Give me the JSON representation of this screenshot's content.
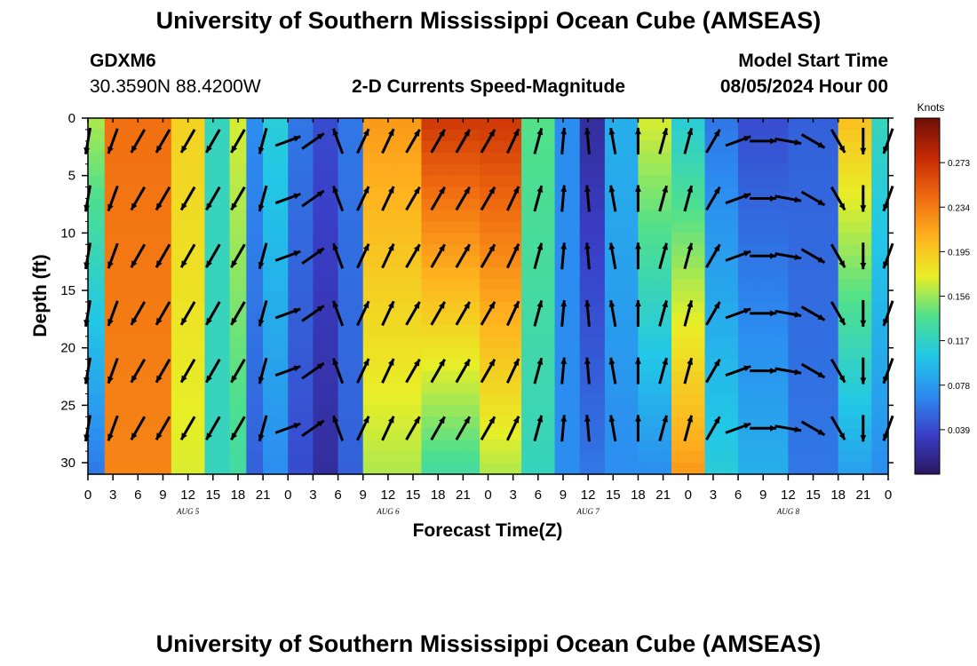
{
  "page": {
    "title": "University of Southern Mississippi Ocean Cube (AMSEAS)",
    "station": "GDXM6",
    "coords": "30.3590N  88.4200W",
    "product": "2-D Currents Speed-Magnitude",
    "model_label": "Model Start Time",
    "model_time": "08/05/2024 Hour 00",
    "footer_title": "University of Southern Mississippi Ocean Cube (AMSEAS)"
  },
  "chart_data": {
    "type": "heatmap",
    "title": "2-D Currents Speed-Magnitude",
    "xlabel": "Forecast Time(Z)",
    "ylabel": "Depth (ft)",
    "x_range_hours": [
      0,
      96
    ],
    "ylim": [
      0,
      31
    ],
    "x_ticks": [
      {
        "hour": 0,
        "label": "0"
      },
      {
        "hour": 3,
        "label": "3"
      },
      {
        "hour": 6,
        "label": "6"
      },
      {
        "hour": 9,
        "label": "9"
      },
      {
        "hour": 12,
        "label": "12"
      },
      {
        "hour": 15,
        "label": "15"
      },
      {
        "hour": 18,
        "label": "18"
      },
      {
        "hour": 21,
        "label": "21"
      },
      {
        "hour": 24,
        "label": "0"
      },
      {
        "hour": 27,
        "label": "3"
      },
      {
        "hour": 30,
        "label": "6"
      },
      {
        "hour": 33,
        "label": "9"
      },
      {
        "hour": 36,
        "label": "12"
      },
      {
        "hour": 39,
        "label": "15"
      },
      {
        "hour": 42,
        "label": "18"
      },
      {
        "hour": 45,
        "label": "21"
      },
      {
        "hour": 48,
        "label": "0"
      },
      {
        "hour": 51,
        "label": "3"
      },
      {
        "hour": 54,
        "label": "6"
      },
      {
        "hour": 57,
        "label": "9"
      },
      {
        "hour": 60,
        "label": "12"
      },
      {
        "hour": 63,
        "label": "15"
      },
      {
        "hour": 66,
        "label": "18"
      },
      {
        "hour": 69,
        "label": "21"
      },
      {
        "hour": 72,
        "label": "0"
      },
      {
        "hour": 75,
        "label": "3"
      },
      {
        "hour": 78,
        "label": "6"
      },
      {
        "hour": 81,
        "label": "9"
      },
      {
        "hour": 84,
        "label": "12"
      },
      {
        "hour": 87,
        "label": "15"
      },
      {
        "hour": 90,
        "label": "18"
      },
      {
        "hour": 93,
        "label": "21"
      },
      {
        "hour": 96,
        "label": "0"
      }
    ],
    "day_labels": [
      {
        "hour": 12,
        "label": "AUG 5"
      },
      {
        "hour": 36,
        "label": "AUG 6"
      },
      {
        "hour": 60,
        "label": "AUG 7"
      },
      {
        "hour": 84,
        "label": "AUG 8"
      }
    ],
    "y_ticks": [
      {
        "depth": 0,
        "label": "0"
      },
      {
        "depth": 5,
        "label": "5"
      },
      {
        "depth": 10,
        "label": "10"
      },
      {
        "depth": 15,
        "label": "15"
      },
      {
        "depth": 20,
        "label": "20"
      },
      {
        "depth": 25,
        "label": "25"
      },
      {
        "depth": 30,
        "label": "30"
      }
    ],
    "colorbar": {
      "label": "Knots",
      "min": 0.0,
      "max": 0.312,
      "ticks": [
        "0.273",
        "0.234",
        "0.195",
        "0.156",
        "0.117",
        "0.078",
        "0.039"
      ],
      "tick_values": [
        0.273,
        0.234,
        0.195,
        0.156,
        0.117,
        0.078,
        0.039
      ],
      "colors": [
        "#2a1660",
        "#3a3fc8",
        "#2c8cf0",
        "#22c8e6",
        "#4fe08c",
        "#e8ee26",
        "#ffb21e",
        "#f06a10",
        "#c42a04",
        "#6e0e06"
      ]
    },
    "speed_model": {
      "note": "approximate speed (knots) per time band; surface and bottom layers listed where they differ",
      "bands": [
        {
          "from": 0,
          "to": 0.5,
          "surface": 0.07,
          "bottom": 0.04
        },
        {
          "from": 0.5,
          "to": 2.5,
          "surface": 0.16,
          "bottom": 0.06
        },
        {
          "from": 2.5,
          "to": 10,
          "surface": 0.24,
          "bottom": 0.23
        },
        {
          "from": 10,
          "to": 14,
          "surface": 0.19,
          "bottom": 0.17
        },
        {
          "from": 14,
          "to": 17,
          "surface": 0.12,
          "bottom": 0.12
        },
        {
          "from": 17,
          "to": 19,
          "surface": 0.17,
          "bottom": 0.13
        },
        {
          "from": 19,
          "to": 21,
          "surface": 0.07,
          "bottom": 0.05
        },
        {
          "from": 21,
          "to": 24,
          "surface": 0.11,
          "bottom": 0.07
        },
        {
          "from": 24,
          "to": 27,
          "surface": 0.06,
          "bottom": 0.04
        },
        {
          "from": 27,
          "to": 30,
          "surface": 0.04,
          "bottom": 0.02
        },
        {
          "from": 30,
          "to": 33,
          "surface": 0.06,
          "bottom": 0.05
        },
        {
          "from": 33,
          "to": 40,
          "surface": 0.22,
          "bottom": 0.16
        },
        {
          "from": 40,
          "to": 47,
          "surface": 0.27,
          "bottom": 0.13
        },
        {
          "from": 47,
          "to": 52,
          "surface": 0.27,
          "bottom": 0.16
        },
        {
          "from": 52,
          "to": 56,
          "surface": 0.14,
          "bottom": 0.12
        },
        {
          "from": 56,
          "to": 59,
          "surface": 0.07,
          "bottom": 0.07
        },
        {
          "from": 59,
          "to": 62,
          "surface": 0.02,
          "bottom": 0.06
        },
        {
          "from": 62,
          "to": 66,
          "surface": 0.09,
          "bottom": 0.07
        },
        {
          "from": 66,
          "to": 70,
          "surface": 0.17,
          "bottom": 0.07
        },
        {
          "from": 70,
          "to": 74,
          "surface": 0.11,
          "bottom": 0.22
        },
        {
          "from": 74,
          "to": 78,
          "surface": 0.06,
          "bottom": 0.11
        },
        {
          "from": 78,
          "to": 84,
          "surface": 0.04,
          "bottom": 0.09
        },
        {
          "from": 84,
          "to": 90,
          "surface": 0.05,
          "bottom": 0.06
        },
        {
          "from": 90,
          "to": 94,
          "surface": 0.2,
          "bottom": 0.08
        },
        {
          "from": 94,
          "to": 96,
          "surface": 0.12,
          "bottom": 0.07
        }
      ]
    },
    "arrows": {
      "grid_hours": [
        0,
        3,
        6,
        9,
        12,
        15,
        18,
        21,
        24,
        27,
        30,
        33,
        36,
        39,
        42,
        45,
        48,
        51,
        54,
        57,
        60,
        63,
        66,
        69,
        72,
        75,
        78,
        81,
        84,
        87,
        90,
        93,
        96
      ],
      "grid_depths": [
        2,
        7,
        12,
        17,
        22,
        27
      ],
      "direction_deg_by_hour": [
        190,
        200,
        210,
        210,
        210,
        210,
        210,
        195,
        70,
        55,
        340,
        25,
        25,
        30,
        30,
        30,
        30,
        25,
        15,
        5,
        355,
        350,
        0,
        15,
        15,
        30,
        70,
        90,
        100,
        120,
        150,
        180,
        200
      ]
    }
  }
}
